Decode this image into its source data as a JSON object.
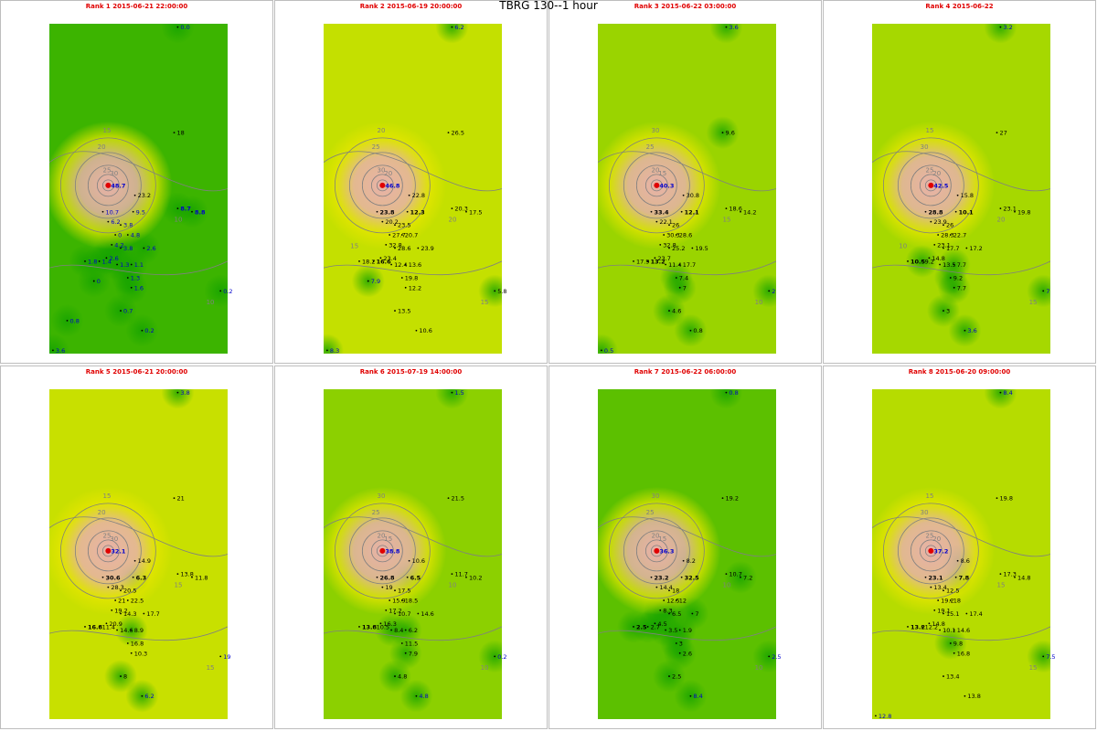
{
  "title": "TBRG 130--1 hour",
  "colors": {
    "low": "#12a200",
    "mid": "#b8e000",
    "high": "#e6e600",
    "peak": "#e8b2a8",
    "contour": "#808080",
    "title": "#e00000",
    "label_blue": "#0000cc"
  },
  "panels": [
    {
      "title": "Rank 1 2015-06-21 22:00:00",
      "map_base": "#3cb400",
      "contour_labels": [
        "15",
        "20",
        "25",
        "30",
        "10",
        "10"
      ],
      "stations": [
        {
          "label": "48.7",
          "value": 48.7,
          "bold": true,
          "blue": true,
          "peak": true
        },
        {
          "label": "23.2",
          "value": 23.2
        },
        {
          "label": "18",
          "value": 18
        },
        {
          "label": "10.7",
          "value": 10.7,
          "blue": true
        },
        {
          "label": "9.5",
          "value": 9.5,
          "blue": true
        },
        {
          "label": "8.7",
          "value": 8.7,
          "bold": true,
          "blue": true
        },
        {
          "label": "8.8",
          "value": 8.8,
          "bold": true,
          "blue": true
        },
        {
          "label": "6.2",
          "value": 6.2,
          "blue": true
        },
        {
          "label": "3.8",
          "value": 3.8,
          "blue": true
        },
        {
          "label": "0",
          "value": 0,
          "blue": true
        },
        {
          "label": "4.8",
          "value": 4.8,
          "blue": true
        },
        {
          "label": "4.2",
          "value": 4.2,
          "blue": true
        },
        {
          "label": "3.8",
          "value": 3.8,
          "blue": true
        },
        {
          "label": "2.6",
          "value": 2.6,
          "blue": true
        },
        {
          "label": "2.6",
          "value": 2.6,
          "blue": true
        },
        {
          "label": "1.8",
          "value": 1.8,
          "blue": true
        },
        {
          "label": "1.4",
          "value": 1.4,
          "blue": true
        },
        {
          "label": "1.3",
          "value": 1.3,
          "blue": true
        },
        {
          "label": "1.1",
          "value": 1.1,
          "blue": true
        },
        {
          "label": "1.3",
          "value": 1.3,
          "blue": true
        },
        {
          "label": "1.6",
          "value": 1.6,
          "blue": true
        },
        {
          "label": "0.7",
          "value": 0.7,
          "blue": true
        },
        {
          "label": "0.2",
          "value": 0.2,
          "blue": true
        },
        {
          "label": "0.0",
          "value": 0,
          "blue": true
        },
        {
          "label": "0.2",
          "value": 0.2,
          "blue": true
        },
        {
          "label": "3.6",
          "value": 3.6,
          "blue": true
        },
        {
          "label": "0",
          "value": 0,
          "blue": true
        },
        {
          "label": "0.8",
          "value": 0.8,
          "blue": true
        }
      ]
    },
    {
      "title": "Rank 2 2015-06-19 20:00:00",
      "map_base": "#c4e000",
      "contour_labels": [
        "20",
        "25",
        "30",
        "20",
        "20",
        "15",
        "15"
      ],
      "stations": [
        {
          "label": "46.8",
          "value": 46.8,
          "bold": true,
          "blue": true,
          "peak": true
        },
        {
          "label": "22.8",
          "value": 22.8
        },
        {
          "label": "26.5",
          "value": 26.5
        },
        {
          "label": "23.8",
          "value": 23.8,
          "bold": true
        },
        {
          "label": "12.3",
          "value": 12.3,
          "bold": true
        },
        {
          "label": "20.3",
          "value": 20.3
        },
        {
          "label": "17.5",
          "value": 17.5
        },
        {
          "label": "20.2",
          "value": 20.2
        },
        {
          "label": "23.5",
          "value": 23.5
        },
        {
          "label": "27.7",
          "value": 27.7
        },
        {
          "label": "20.7",
          "value": 20.7
        },
        {
          "label": "32.8",
          "value": 32.8
        },
        {
          "label": "28.6",
          "value": 28.6
        },
        {
          "label": "23.9",
          "value": 23.9
        },
        {
          "label": "23.4",
          "value": 23.4
        },
        {
          "label": "18.2",
          "value": 18.2
        },
        {
          "label": "16.6",
          "value": 16.6,
          "bold": true
        },
        {
          "label": "12.4",
          "value": 12.4
        },
        {
          "label": "13.6",
          "value": 13.6
        },
        {
          "label": "19.8",
          "value": 19.8
        },
        {
          "label": "12.2",
          "value": 12.2
        },
        {
          "label": "13.5",
          "value": 13.5
        },
        {
          "label": "10.6",
          "value": 10.6
        },
        {
          "label": "6.2",
          "value": 6.2,
          "blue": true
        },
        {
          "label": "5.8",
          "value": 5.8
        },
        {
          "label": "8.3",
          "value": 8.3,
          "blue": true
        },
        {
          "label": "7.9",
          "value": 7.9,
          "blue": true
        }
      ]
    },
    {
      "title": "Rank 3 2015-06-22 03:00:00",
      "map_base": "#9ad400",
      "contour_labels": [
        "30",
        "25",
        "20",
        "15",
        "15",
        "10"
      ],
      "stations": [
        {
          "label": "40.3",
          "value": 40.3,
          "bold": true,
          "blue": true,
          "peak": true
        },
        {
          "label": "30.8",
          "value": 30.8
        },
        {
          "label": "9.6",
          "value": 9.6
        },
        {
          "label": "33.4",
          "value": 33.4,
          "bold": true
        },
        {
          "label": "12.1",
          "value": 12.1,
          "bold": true
        },
        {
          "label": "18.6",
          "value": 18.6
        },
        {
          "label": "14.2",
          "value": 14.2
        },
        {
          "label": "22.1",
          "value": 22.1
        },
        {
          "label": "26",
          "value": 26
        },
        {
          "label": "30.3",
          "value": 30.3
        },
        {
          "label": "28.6",
          "value": 28.6
        },
        {
          "label": "32.8",
          "value": 32.8
        },
        {
          "label": "25.2",
          "value": 25.2
        },
        {
          "label": "19.5",
          "value": 19.5
        },
        {
          "label": "23.7",
          "value": 23.7
        },
        {
          "label": "17.9",
          "value": 17.9
        },
        {
          "label": "13.2",
          "value": 13.2,
          "bold": true
        },
        {
          "label": "11.4",
          "value": 11.4
        },
        {
          "label": "17.7",
          "value": 17.7
        },
        {
          "label": "7.4",
          "value": 7.4
        },
        {
          "label": "7",
          "value": 7
        },
        {
          "label": "4.6",
          "value": 4.6
        },
        {
          "label": "0.8",
          "value": 0.8
        },
        {
          "label": "3.6",
          "value": 3.6,
          "blue": true
        },
        {
          "label": "2",
          "value": 2,
          "blue": true
        },
        {
          "label": "0.5",
          "value": 0.5,
          "blue": true
        }
      ]
    },
    {
      "title": "Rank 4 2015-06-22",
      "map_base": "#a6d800",
      "contour_labels": [
        "15",
        "30",
        "25",
        "20",
        "20",
        "15",
        "10"
      ],
      "stations": [
        {
          "label": "42.5",
          "value": 42.5,
          "bold": true,
          "blue": true,
          "peak": true
        },
        {
          "label": "15.8",
          "value": 15.8
        },
        {
          "label": "27",
          "value": 27
        },
        {
          "label": "28.8",
          "value": 28.8,
          "bold": true
        },
        {
          "label": "10.1",
          "value": 10.1,
          "bold": true
        },
        {
          "label": "23.1",
          "value": 23.1
        },
        {
          "label": "19.8",
          "value": 19.8
        },
        {
          "label": "23.9",
          "value": 23.9
        },
        {
          "label": "26",
          "value": 26
        },
        {
          "label": "28.3",
          "value": 28.3
        },
        {
          "label": "22.7",
          "value": 22.7
        },
        {
          "label": "23.1",
          "value": 23.1
        },
        {
          "label": "17.7",
          "value": 17.7
        },
        {
          "label": "17.2",
          "value": 17.2
        },
        {
          "label": "14.8",
          "value": 14.8
        },
        {
          "label": "10.5",
          "value": 10.5,
          "bold": true
        },
        {
          "label": "9.2",
          "value": 9.2
        },
        {
          "label": "13.5",
          "value": 13.5
        },
        {
          "label": "7.7",
          "value": 7.7
        },
        {
          "label": "9.2",
          "value": 9.2
        },
        {
          "label": "7.7",
          "value": 7.7
        },
        {
          "label": "3",
          "value": 3
        },
        {
          "label": "3.6",
          "value": 3.6,
          "blue": true
        },
        {
          "label": "3.2",
          "value": 3.2,
          "blue": true
        },
        {
          "label": "7",
          "value": 7,
          "blue": true
        }
      ]
    },
    {
      "title": "Rank 5 2015-06-21 20:00:00",
      "map_base": "#c8e000",
      "contour_labels": [
        "15",
        "20",
        "25",
        "30",
        "15",
        "15"
      ],
      "stations": [
        {
          "label": "32.1",
          "value": 32.1,
          "bold": true,
          "blue": true,
          "peak": true
        },
        {
          "label": "14.9",
          "value": 14.9
        },
        {
          "label": "21",
          "value": 21
        },
        {
          "label": "30.6",
          "value": 30.6,
          "bold": true
        },
        {
          "label": "6.3",
          "value": 6.3,
          "bold": true
        },
        {
          "label": "13.8",
          "value": 13.8
        },
        {
          "label": "11.8",
          "value": 11.8
        },
        {
          "label": "28.3",
          "value": 28.3
        },
        {
          "label": "20.5",
          "value": 20.5
        },
        {
          "label": "21",
          "value": 21
        },
        {
          "label": "22.5",
          "value": 22.5
        },
        {
          "label": "19.2",
          "value": 19.2
        },
        {
          "label": "14.3",
          "value": 14.3
        },
        {
          "label": "17.7",
          "value": 17.7
        },
        {
          "label": "20.9",
          "value": 20.9
        },
        {
          "label": "16.8",
          "value": 16.8,
          "bold": true
        },
        {
          "label": "11.4",
          "value": 11.4
        },
        {
          "label": "14.6",
          "value": 14.6
        },
        {
          "label": "8.9",
          "value": 8.9
        },
        {
          "label": "16.8",
          "value": 16.8
        },
        {
          "label": "10.3",
          "value": 10.3
        },
        {
          "label": "8",
          "value": 8
        },
        {
          "label": "6.2",
          "value": 6.2,
          "blue": true
        },
        {
          "label": "3.8",
          "value": 3.8,
          "blue": true
        },
        {
          "label": "19",
          "value": 19,
          "blue": true
        }
      ]
    },
    {
      "title": "Rank 6 2015-07-19 14:00:00",
      "map_base": "#8cd000",
      "contour_labels": [
        "30",
        "25",
        "20",
        "15",
        "10",
        "10"
      ],
      "stations": [
        {
          "label": "38.8",
          "value": 38.8,
          "bold": true,
          "blue": true,
          "peak": true
        },
        {
          "label": "10.6",
          "value": 10.6
        },
        {
          "label": "21.5",
          "value": 21.5
        },
        {
          "label": "26.8",
          "value": 26.8,
          "bold": true
        },
        {
          "label": "6.5",
          "value": 6.5,
          "bold": true
        },
        {
          "label": "11.7",
          "value": 11.7
        },
        {
          "label": "10.2",
          "value": 10.2
        },
        {
          "label": "19",
          "value": 19
        },
        {
          "label": "17.5",
          "value": 17.5
        },
        {
          "label": "15.9",
          "value": 15.9
        },
        {
          "label": "18.5",
          "value": 18.5
        },
        {
          "label": "17.2",
          "value": 17.2
        },
        {
          "label": "10.7",
          "value": 10.7
        },
        {
          "label": "14.6",
          "value": 14.6
        },
        {
          "label": "16.3",
          "value": 16.3
        },
        {
          "label": "13.8",
          "value": 13.8,
          "bold": true
        },
        {
          "label": "10.5",
          "value": 10.5
        },
        {
          "label": "8.4",
          "value": 8.4
        },
        {
          "label": "6.2",
          "value": 6.2
        },
        {
          "label": "11.5",
          "value": 11.5
        },
        {
          "label": "7.9",
          "value": 7.9
        },
        {
          "label": "4.8",
          "value": 4.8
        },
        {
          "label": "4.8",
          "value": 4.8,
          "blue": true
        },
        {
          "label": "1.5",
          "value": 1.5,
          "blue": true
        },
        {
          "label": "0.2",
          "value": 0.2,
          "blue": true
        }
      ]
    },
    {
      "title": "Rank 7 2015-06-22 06:00:00",
      "map_base": "#5cc000",
      "contour_labels": [
        "30",
        "25",
        "20",
        "15",
        "10",
        "10"
      ],
      "stations": [
        {
          "label": "36.3",
          "value": 36.3,
          "bold": true,
          "blue": true,
          "peak": true
        },
        {
          "label": "8.2",
          "value": 8.2
        },
        {
          "label": "19.2",
          "value": 19.2
        },
        {
          "label": "23.2",
          "value": 23.2,
          "bold": true
        },
        {
          "label": "32.5",
          "value": 32.5,
          "bold": true
        },
        {
          "label": "10.7",
          "value": 10.7
        },
        {
          "label": "7.2",
          "value": 7.2
        },
        {
          "label": "14.4",
          "value": 14.4
        },
        {
          "label": "18",
          "value": 18
        },
        {
          "label": "12.5",
          "value": 12.5
        },
        {
          "label": "12",
          "value": 12
        },
        {
          "label": "8.3",
          "value": 8.3
        },
        {
          "label": "6.5",
          "value": 6.5
        },
        {
          "label": "7",
          "value": 7
        },
        {
          "label": "4.5",
          "value": 4.5
        },
        {
          "label": "2.5",
          "value": 2.5,
          "bold": true
        },
        {
          "label": "2.7",
          "value": 2.7
        },
        {
          "label": "3.5",
          "value": 3.5
        },
        {
          "label": "1.9",
          "value": 1.9
        },
        {
          "label": "3",
          "value": 3
        },
        {
          "label": "2.6",
          "value": 2.6
        },
        {
          "label": "2.5",
          "value": 2.5
        },
        {
          "label": "8.4",
          "value": 8.4,
          "blue": true
        },
        {
          "label": "0.8",
          "value": 0.8,
          "blue": true
        },
        {
          "label": "2.5",
          "value": 2.5,
          "blue": true
        }
      ]
    },
    {
      "title": "Rank 8 2015-06-20 09:00:00",
      "map_base": "#b6dc00",
      "contour_labels": [
        "15",
        "30",
        "25",
        "20",
        "15",
        "15"
      ],
      "stations": [
        {
          "label": "37.2",
          "value": 37.2,
          "bold": true,
          "blue": true,
          "peak": true
        },
        {
          "label": "8.6",
          "value": 8.6
        },
        {
          "label": "19.8",
          "value": 19.8
        },
        {
          "label": "23.1",
          "value": 23.1,
          "bold": true
        },
        {
          "label": "7.8",
          "value": 7.8,
          "bold": true
        },
        {
          "label": "17.3",
          "value": 17.3
        },
        {
          "label": "14.8",
          "value": 14.8
        },
        {
          "label": "13.4",
          "value": 13.4
        },
        {
          "label": "12.5",
          "value": 12.5
        },
        {
          "label": "19.2",
          "value": 19.2
        },
        {
          "label": "18",
          "value": 18
        },
        {
          "label": "19.1",
          "value": 19.1
        },
        {
          "label": "15.1",
          "value": 15.1
        },
        {
          "label": "17.4",
          "value": 17.4
        },
        {
          "label": "14.8",
          "value": 14.8
        },
        {
          "label": "13.2",
          "value": 13.2,
          "bold": true
        },
        {
          "label": "12.2",
          "value": 12.2
        },
        {
          "label": "10.1",
          "value": 10.1
        },
        {
          "label": "14.6",
          "value": 14.6
        },
        {
          "label": "9.8",
          "value": 9.8
        },
        {
          "label": "16.8",
          "value": 16.8
        },
        {
          "label": "13.4",
          "value": 13.4
        },
        {
          "label": "13.8",
          "value": 13.8
        },
        {
          "label": "8.4",
          "value": 8.4,
          "blue": true
        },
        {
          "label": "7.5",
          "value": 7.5,
          "blue": true
        },
        {
          "label": "12.8",
          "value": 12.8,
          "blue": true
        }
      ]
    }
  ]
}
